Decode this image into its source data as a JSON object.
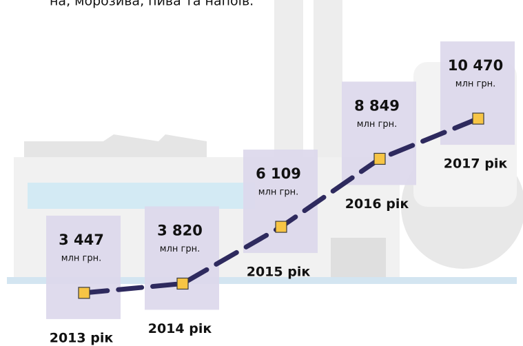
{
  "chart_data": {
    "type": "line",
    "subtitle": "на, морозива, пива та напоїв.",
    "unit": "млн грн.",
    "categories": [
      "2013 рік",
      "2014 рік",
      "2015 рік",
      "2016 рік",
      "2017 рік"
    ],
    "values": [
      3447,
      3820,
      6109,
      8849,
      10470
    ],
    "value_labels": [
      "3 447",
      "3 820",
      "6 109",
      "8 849",
      "10 470"
    ],
    "color": "#2e2a5e",
    "marker_color": "#f7c545",
    "box_color": "#dcd8ec",
    "ylim": [
      0,
      12000
    ]
  }
}
